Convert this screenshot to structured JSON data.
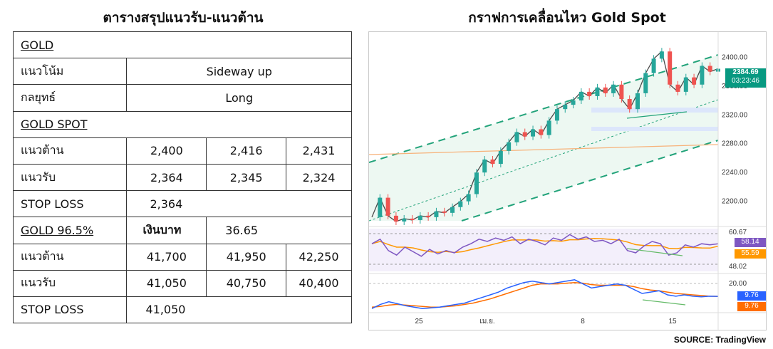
{
  "left_title": "ตารางสรุปแนวรับ-แนวต้าน",
  "right_title": "กราฟการเคลื่อนไหว Gold Spot",
  "source": "SOURCE: TradingView",
  "table": {
    "gold_header": "GOLD",
    "trend_label": "แนวโน้ม",
    "trend_value": "Sideway up",
    "strategy_label": "กลยุทธ์",
    "strategy_value": "Long",
    "spot_header": "GOLD SPOT",
    "spot_resistance_label": "แนวต้าน",
    "spot_resistance": [
      "2,400",
      "2,416",
      "2,431"
    ],
    "spot_support_label": "แนวรับ",
    "spot_support": [
      "2,364",
      "2,345",
      "2,324"
    ],
    "spot_stoploss_label": "STOP LOSS",
    "spot_stoploss": "2,364",
    "thai_header": "GOLD 96.5%",
    "baht_label": "เงินบาท",
    "baht_value": "36.65",
    "thai_resistance_label": "แนวต้าน",
    "thai_resistance": [
      "41,700",
      "41,950",
      "42,250"
    ],
    "thai_support_label": "แนวรับ",
    "thai_support": [
      "41,050",
      "40,750",
      "40,400"
    ],
    "thai_stoploss_label": "STOP LOSS",
    "thai_stoploss": "41,050"
  },
  "colors": {
    "bull": "#26a69a",
    "bear": "#ef5350",
    "rsi": "#7e57c2",
    "rsi_ma": "#ff9800",
    "macd": "#2962ff",
    "signal": "#ff6d00",
    "channel": "#22a37a",
    "price_tag": "#089981"
  },
  "chart_data": {
    "type": "line",
    "instrument": "Gold Spot",
    "price_axis": {
      "ticks": [
        "2400.00",
        "2360.00",
        "2320.00",
        "2280.00",
        "2240.00",
        "2200.00"
      ],
      "range": [
        2170,
        2430
      ]
    },
    "x_ticks": [
      "25",
      "เม.ย.",
      "8",
      "15"
    ],
    "last_price": "2384.69",
    "countdown": "03:23:46",
    "price_path": [
      2178,
      2205,
      2180,
      2172,
      2176,
      2174,
      2180,
      2178,
      2186,
      2184,
      2192,
      2200,
      2210,
      2240,
      2258,
      2252,
      2270,
      2282,
      2296,
      2290,
      2300,
      2292,
      2312,
      2328,
      2334,
      2340,
      2352,
      2346,
      2358,
      2350,
      2362,
      2342,
      2328,
      2350,
      2378,
      2398,
      2408,
      2362,
      2352,
      2372,
      2362,
      2388,
      2380,
      2384
    ],
    "rsi": {
      "ticks": [
        "60.67",
        "48.02"
      ],
      "rsi_value": "58.14",
      "rsi_ma_value": "55.59",
      "series": [
        58,
        62,
        52,
        48,
        55,
        51,
        47,
        53,
        49,
        52,
        50,
        55,
        58,
        62,
        60,
        63,
        61,
        64,
        58,
        62,
        60,
        57,
        63,
        61,
        66,
        62,
        64,
        60,
        61,
        58,
        62,
        52,
        50,
        56,
        60,
        58,
        48,
        50,
        57,
        55,
        58,
        57,
        58
      ]
    },
    "macd": {
      "ticks": [
        "20.00"
      ],
      "macd_value": "9.76",
      "signal_value": "9.76",
      "series": [
        -8,
        -2,
        2,
        -1,
        -4,
        -6,
        -8,
        -7,
        -6,
        -4,
        -2,
        0,
        4,
        8,
        12,
        16,
        22,
        26,
        30,
        32,
        30,
        28,
        30,
        32,
        34,
        28,
        22,
        24,
        26,
        28,
        26,
        20,
        14,
        16,
        18,
        12,
        10,
        12,
        10,
        9,
        10,
        9.76
      ],
      "signal_series": [
        -6,
        -5,
        -3,
        -2,
        -3,
        -4,
        -5,
        -6,
        -6,
        -5,
        -4,
        -2,
        0,
        3,
        6,
        10,
        14,
        18,
        22,
        26,
        28,
        28,
        28,
        29,
        30,
        29,
        27,
        26,
        26,
        26,
        26,
        24,
        21,
        19,
        18,
        16,
        14,
        13,
        12,
        11,
        10,
        9.76
      ]
    }
  }
}
